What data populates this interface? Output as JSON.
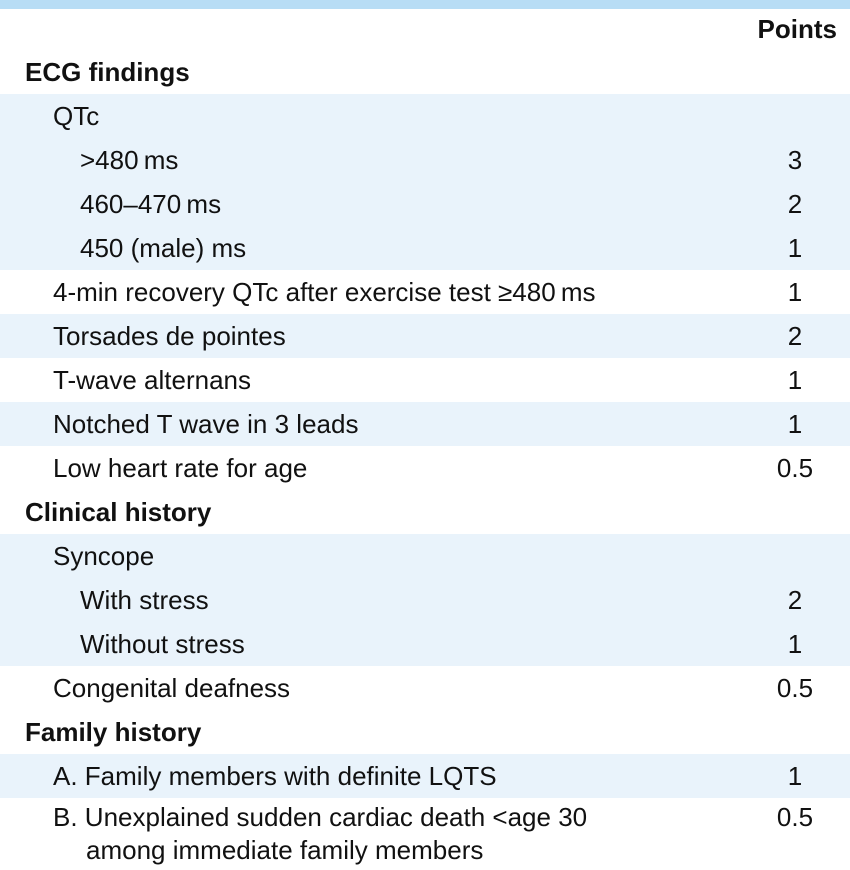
{
  "header": {
    "points_label": "Points"
  },
  "colors": {
    "top_stripe_blue": "#b8ddf5",
    "row_band_blue": "#e9f3fb",
    "text": "#111111"
  },
  "rows": [
    {
      "label": "ECG findings",
      "points": "",
      "type": "section"
    },
    {
      "label": "QTc",
      "points": "",
      "type": "item"
    },
    {
      "label": ">480 ms",
      "points": "3",
      "type": "subitem"
    },
    {
      "label": "460–470 ms",
      "points": "2",
      "type": "subitem"
    },
    {
      "label": "450 (male) ms",
      "points": "1",
      "type": "subitem"
    },
    {
      "label": "4-min recovery QTc after exercise test ≥480 ms",
      "points": "1",
      "type": "item"
    },
    {
      "label": "Torsades de pointes",
      "points": "2",
      "type": "item"
    },
    {
      "label": "T-wave alternans",
      "points": "1",
      "type": "item"
    },
    {
      "label": "Notched T wave in 3 leads",
      "points": "1",
      "type": "item"
    },
    {
      "label": "Low heart rate for age",
      "points": "0.5",
      "type": "item"
    },
    {
      "label": "Clinical history",
      "points": "",
      "type": "section"
    },
    {
      "label": "Syncope",
      "points": "",
      "type": "item"
    },
    {
      "label": "With stress",
      "points": "2",
      "type": "subitem"
    },
    {
      "label": "Without stress",
      "points": "1",
      "type": "subitem"
    },
    {
      "label": "Congenital deafness",
      "points": "0.5",
      "type": "item"
    },
    {
      "label": "Family history",
      "points": "",
      "type": "section"
    },
    {
      "label": "A. Family members with definite LQTS",
      "points": "1",
      "type": "item"
    },
    {
      "label": "B. Unexplained sudden cardiac death <age 30",
      "label2": "among immediate family members",
      "points": "0.5",
      "type": "item"
    }
  ]
}
